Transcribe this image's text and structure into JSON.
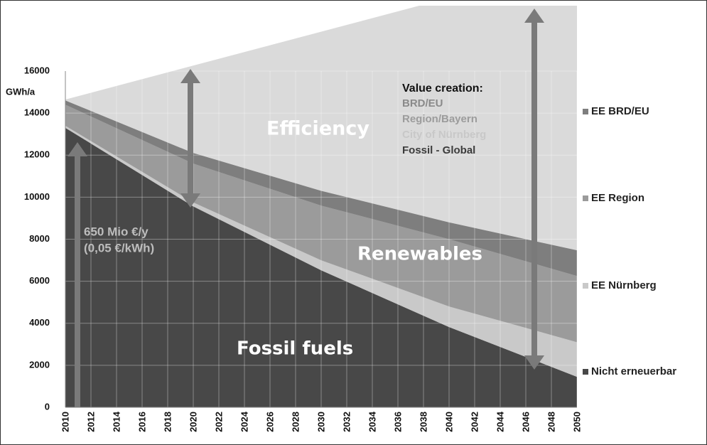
{
  "chart_data": {
    "type": "area",
    "y_label": "GWh/a",
    "x": [
      2010,
      2020,
      2030,
      2040,
      2050
    ],
    "xlim": [
      2010,
      2050
    ],
    "xticks": [
      2010,
      2012,
      2014,
      2016,
      2018,
      2020,
      2022,
      2024,
      2026,
      2028,
      2030,
      2032,
      2034,
      2036,
      2038,
      2040,
      2042,
      2044,
      2046,
      2048,
      2050
    ],
    "ylim": [
      0,
      16000
    ],
    "yticks": [
      0,
      2000,
      4000,
      6000,
      8000,
      10000,
      12000,
      14000,
      16000
    ],
    "grid": true,
    "stacked": true,
    "series": [
      {
        "name": "Nicht erneuerbar",
        "color": "#484848",
        "values": [
          13300,
          9560,
          6520,
          3820,
          1450
        ]
      },
      {
        "name": "EE Nürnberg",
        "color": "#c9c9c9",
        "values": [
          100,
          190,
          480,
          980,
          1650
        ]
      },
      {
        "name": "EE Region",
        "color": "#9b9b9b",
        "values": [
          1000,
          1850,
          2600,
          3200,
          3150
        ]
      },
      {
        "name": "EE BRD/EU",
        "color": "#7e7e7e",
        "values": [
          200,
          500,
          700,
          800,
          1220
        ]
      }
    ],
    "annotations": {
      "efficiency": "Efficiency",
      "renewables": "Renewables",
      "fossil": "Fossil fuels",
      "cost_line1": "650 Mio €/y",
      "cost_line2": "(0,05 €/kWh)",
      "value_title": "Value creation:",
      "value_items": [
        "BRD/EU",
        "Region/Bayern",
        "City of Nürnberg",
        "Fossil - Global"
      ]
    }
  }
}
